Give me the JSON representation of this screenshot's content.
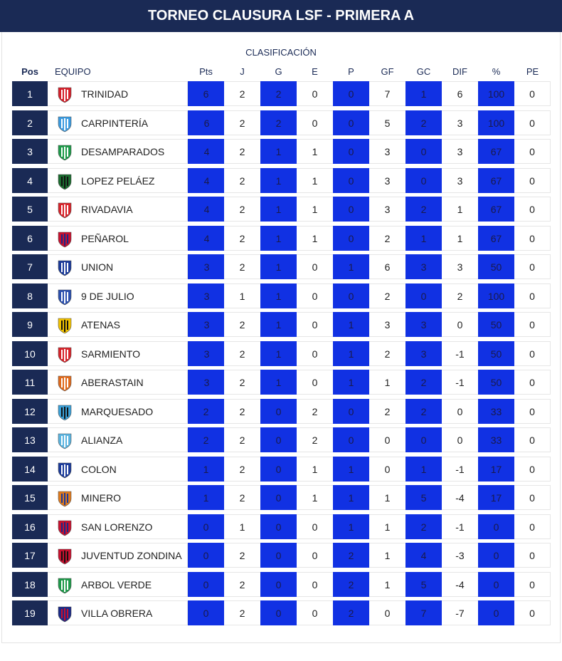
{
  "header": {
    "title": "TORNEO CLAUSURA LSF - PRIMERA A",
    "subtitle": "CLASIFICACIÓN"
  },
  "columns": {
    "pos": "Pos",
    "team": "EQUIPO",
    "pts": "Pts",
    "j": "J",
    "g": "G",
    "e": "E",
    "p": "P",
    "gf": "GF",
    "gc": "GC",
    "dif": "DIF",
    "pct": "%",
    "pe": "PE"
  },
  "colors": {
    "banner": "#1a2a55",
    "highlight": "#1131e3",
    "pos_bg": "#1a2a55",
    "accent_green": "#2fa56a"
  },
  "rows": [
    {
      "pos": "1",
      "team": "TRINIDAD",
      "pts": "6",
      "j": "2",
      "g": "2",
      "e": "0",
      "p": "0",
      "gf": "7",
      "gc": "1",
      "dif": "6",
      "pct": "100",
      "pe": "0",
      "crest": {
        "name": "trinidad-crest-icon",
        "c1": "#d61f2a",
        "c2": "#ffffff"
      }
    },
    {
      "pos": "2",
      "team": "CARPINTERÍA",
      "pts": "6",
      "j": "2",
      "g": "2",
      "e": "0",
      "p": "0",
      "gf": "5",
      "gc": "2",
      "dif": "3",
      "pct": "100",
      "pe": "0",
      "crest": {
        "name": "carpinteria-crest-icon",
        "c1": "#3b9be0",
        "c2": "#ffffff"
      }
    },
    {
      "pos": "3",
      "team": "DESAMPARADOS",
      "pts": "4",
      "j": "2",
      "g": "1",
      "e": "1",
      "p": "0",
      "gf": "3",
      "gc": "0",
      "dif": "3",
      "pct": "67",
      "pe": "0",
      "crest": {
        "name": "desamparados-crest-icon",
        "c1": "#1e9a4a",
        "c2": "#ffffff"
      }
    },
    {
      "pos": "4",
      "team": "LOPEZ PELÁEZ",
      "pts": "4",
      "j": "2",
      "g": "1",
      "e": "1",
      "p": "0",
      "gf": "3",
      "gc": "0",
      "dif": "3",
      "pct": "67",
      "pe": "0",
      "crest": {
        "name": "lopez-pelaez-crest-icon",
        "c1": "#1a6b2e",
        "c2": "#111111"
      }
    },
    {
      "pos": "5",
      "team": "RIVADAVIA",
      "pts": "4",
      "j": "2",
      "g": "1",
      "e": "1",
      "p": "0",
      "gf": "3",
      "gc": "2",
      "dif": "1",
      "pct": "67",
      "pe": "0",
      "crest": {
        "name": "rivadavia-crest-icon",
        "c1": "#d8232a",
        "c2": "#ffffff"
      }
    },
    {
      "pos": "6",
      "team": "PEÑAROL",
      "pts": "4",
      "j": "2",
      "g": "1",
      "e": "1",
      "p": "0",
      "gf": "2",
      "gc": "1",
      "dif": "1",
      "pct": "67",
      "pe": "0",
      "crest": {
        "name": "penarol-crest-icon",
        "c1": "#c8102e",
        "c2": "#1a2a88"
      }
    },
    {
      "pos": "7",
      "team": "UNION",
      "pts": "3",
      "j": "2",
      "g": "1",
      "e": "0",
      "p": "1",
      "gf": "6",
      "gc": "3",
      "dif": "3",
      "pct": "50",
      "pe": "0",
      "crest": {
        "name": "union-crest-icon",
        "c1": "#1a3a9a",
        "c2": "#ffffff"
      }
    },
    {
      "pos": "8",
      "team": "9 DE JULIO",
      "pts": "3",
      "j": "1",
      "g": "1",
      "e": "0",
      "p": "0",
      "gf": "2",
      "gc": "0",
      "dif": "2",
      "pct": "100",
      "pe": "0",
      "crest": {
        "name": "nueve-de-julio-crest-icon",
        "c1": "#2a4fae",
        "c2": "#ffffff"
      }
    },
    {
      "pos": "9",
      "team": "ATENAS",
      "pts": "3",
      "j": "2",
      "g": "1",
      "e": "0",
      "p": "1",
      "gf": "3",
      "gc": "3",
      "dif": "0",
      "pct": "50",
      "pe": "0",
      "crest": {
        "name": "atenas-crest-icon",
        "c1": "#f2c200",
        "c2": "#111111"
      }
    },
    {
      "pos": "10",
      "team": "SARMIENTO",
      "pts": "3",
      "j": "2",
      "g": "1",
      "e": "0",
      "p": "1",
      "gf": "2",
      "gc": "3",
      "dif": "-1",
      "pct": "50",
      "pe": "0",
      "crest": {
        "name": "sarmiento-crest-icon",
        "c1": "#d8232a",
        "c2": "#ffffff"
      }
    },
    {
      "pos": "11",
      "team": "ABERASTAIN",
      "pts": "3",
      "j": "2",
      "g": "1",
      "e": "0",
      "p": "1",
      "gf": "1",
      "gc": "2",
      "dif": "-1",
      "pct": "50",
      "pe": "0",
      "crest": {
        "name": "aberastain-crest-icon",
        "c1": "#e06a1c",
        "c2": "#ffffff"
      }
    },
    {
      "pos": "12",
      "team": "MARQUESADO",
      "pts": "2",
      "j": "2",
      "g": "0",
      "e": "2",
      "p": "0",
      "gf": "2",
      "gc": "2",
      "dif": "0",
      "pct": "33",
      "pe": "0",
      "crest": {
        "name": "marquesado-crest-icon",
        "c1": "#3aa0d8",
        "c2": "#111111"
      }
    },
    {
      "pos": "13",
      "team": "ALIANZA",
      "pts": "2",
      "j": "2",
      "g": "0",
      "e": "2",
      "p": "0",
      "gf": "0",
      "gc": "0",
      "dif": "0",
      "pct": "33",
      "pe": "0",
      "crest": {
        "name": "alianza-crest-icon",
        "c1": "#5ab4e0",
        "c2": "#ffffff"
      }
    },
    {
      "pos": "14",
      "team": "COLON",
      "pts": "1",
      "j": "2",
      "g": "0",
      "e": "1",
      "p": "1",
      "gf": "0",
      "gc": "1",
      "dif": "-1",
      "pct": "17",
      "pe": "0",
      "crest": {
        "name": "colon-crest-icon",
        "c1": "#1a3a9a",
        "c2": "#ffffff"
      }
    },
    {
      "pos": "15",
      "team": "MINERO",
      "pts": "1",
      "j": "2",
      "g": "0",
      "e": "1",
      "p": "1",
      "gf": "1",
      "gc": "5",
      "dif": "-4",
      "pct": "17",
      "pe": "0",
      "crest": {
        "name": "minero-crest-icon",
        "c1": "#e07a1c",
        "c2": "#1a3a9a"
      }
    },
    {
      "pos": "16",
      "team": "SAN LORENZO",
      "pts": "0",
      "j": "1",
      "g": "0",
      "e": "0",
      "p": "1",
      "gf": "1",
      "gc": "2",
      "dif": "-1",
      "pct": "0",
      "pe": "0",
      "crest": {
        "name": "san-lorenzo-crest-icon",
        "c1": "#c8102e",
        "c2": "#1a2a88"
      }
    },
    {
      "pos": "17",
      "team": "JUVENTUD ZONDINA",
      "pts": "0",
      "j": "2",
      "g": "0",
      "e": "0",
      "p": "2",
      "gf": "1",
      "gc": "4",
      "dif": "-3",
      "pct": "0",
      "pe": "0",
      "crest": {
        "name": "juventud-zondina-crest-icon",
        "c1": "#c8102e",
        "c2": "#111111"
      }
    },
    {
      "pos": "18",
      "team": "ARBOL VERDE",
      "pts": "0",
      "j": "2",
      "g": "0",
      "e": "0",
      "p": "2",
      "gf": "1",
      "gc": "5",
      "dif": "-4",
      "pct": "0",
      "pe": "0",
      "crest": {
        "name": "arbol-verde-crest-icon",
        "c1": "#1e9a4a",
        "c2": "#ffffff"
      }
    },
    {
      "pos": "19",
      "team": "VILLA OBRERA",
      "pts": "0",
      "j": "2",
      "g": "0",
      "e": "0",
      "p": "2",
      "gf": "0",
      "gc": "7",
      "dif": "-7",
      "pct": "0",
      "pe": "0",
      "crest": {
        "name": "villa-obrera-crest-icon",
        "c1": "#1a2a88",
        "c2": "#c8102e"
      }
    }
  ]
}
